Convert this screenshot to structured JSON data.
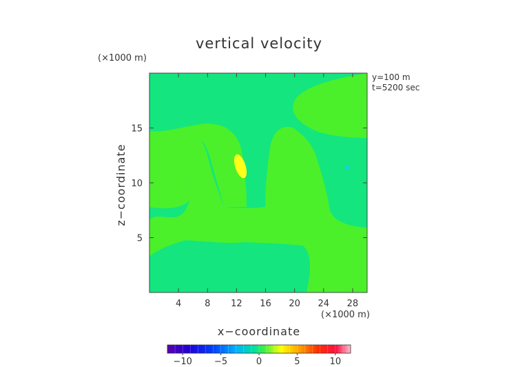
{
  "chart_data": {
    "type": "heatmap",
    "title": "vertical velocity",
    "xlabel": "x−coordinate",
    "ylabel": "z−coordinate",
    "x_unit": "(×1000 m)",
    "y_unit": "(×1000 m)",
    "annotations": [
      "y=100 m",
      "t=5200 sec"
    ],
    "xlim": [
      0,
      30
    ],
    "ylim": [
      0,
      20
    ],
    "x_ticks": [
      4,
      8,
      12,
      16,
      20,
      24,
      28
    ],
    "y_ticks": [
      5,
      10,
      15
    ],
    "x_tick_labels": [
      "4",
      "8",
      "12",
      "16",
      "20",
      "24",
      "28"
    ],
    "y_tick_labels": [
      "5",
      "10",
      "15"
    ],
    "colorbar": {
      "range": [
        -12,
        12
      ],
      "ticks": [
        -10,
        -5,
        0,
        5,
        10
      ],
      "tick_labels": [
        "−10",
        "−5",
        "0",
        "5",
        "10"
      ]
    },
    "fields": {
      "background_level": "0 to +1 (light green)",
      "regions": [
        {
          "name": "lower-left +1 region",
          "level": "+1 (green)"
        },
        {
          "name": "upper band +1 region",
          "level": "+1 (green)"
        },
        {
          "name": "central arch +1 region",
          "level": "+1 (green)"
        },
        {
          "name": "updraft core",
          "x": 12.5,
          "z": 11.5,
          "level": "+3 (yellow)"
        },
        {
          "name": "weak downdraft spot",
          "x": 27,
          "z": 11.5,
          "level": "-2 (cyan)"
        }
      ]
    },
    "colors": {
      "base": "#14E57E",
      "positive_light": "#4BF02B",
      "updraft": "#FFFF1A",
      "downdraft": "#1EC8FF"
    }
  }
}
